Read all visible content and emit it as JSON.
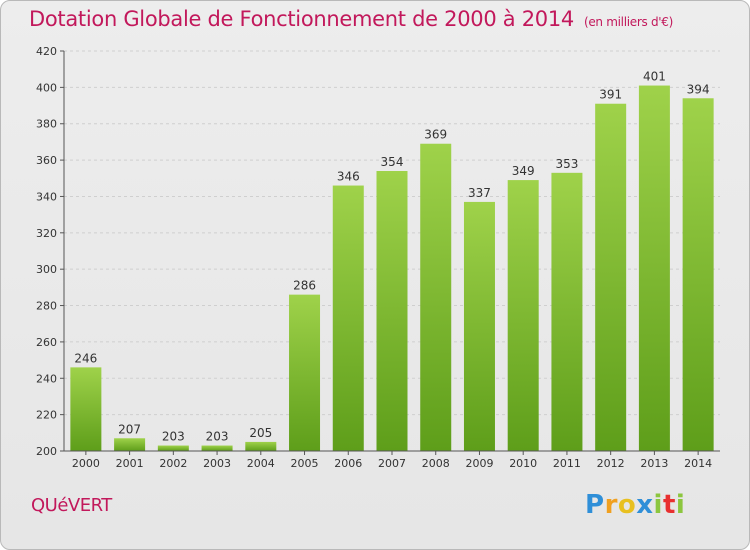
{
  "header": {
    "title": "Dotation Globale de Fonctionnement de 2000 à 2014",
    "subtitle": "(en milliers d'€)"
  },
  "footer": {
    "place": "QUéVERT",
    "logo_letters": [
      "P",
      "r",
      "o",
      "x",
      "i",
      "t",
      "i"
    ],
    "logo_colors": [
      "#2f8fd8",
      "#f0a020",
      "#e8c020",
      "#2f8fd8",
      "#8cc63f",
      "#e83030",
      "#8cc63f"
    ]
  },
  "colors": {
    "bar_top": "#9fd24a",
    "bar_bottom": "#5e9e1a",
    "grid": "#cfcfcf",
    "accent": "#c2185b"
  },
  "chart_data": {
    "type": "bar",
    "title": "Dotation Globale de Fonctionnement de 2000 à 2014",
    "subtitle": "(en milliers d'€)",
    "categories": [
      "2000",
      "2001",
      "2002",
      "2003",
      "2004",
      "2005",
      "2006",
      "2007",
      "2008",
      "2009",
      "2010",
      "2011",
      "2012",
      "2013",
      "2014"
    ],
    "values": [
      246,
      207,
      203,
      203,
      205,
      286,
      346,
      354,
      369,
      337,
      349,
      353,
      391,
      401,
      394
    ],
    "ylim": [
      200,
      420
    ],
    "yticks": [
      200,
      220,
      240,
      260,
      280,
      300,
      320,
      340,
      360,
      380,
      400,
      420
    ],
    "grid": true,
    "xlabel": "",
    "ylabel": ""
  }
}
